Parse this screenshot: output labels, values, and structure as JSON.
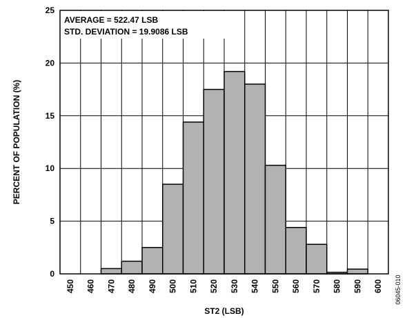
{
  "chart_data": {
    "type": "bar",
    "title": "",
    "xlabel": "ST2 (LSB)",
    "ylabel": "PERCENT OF POPULATION (%)",
    "x_ticks": [
      "450",
      "460",
      "470",
      "480",
      "490",
      "500",
      "510",
      "520",
      "530",
      "540",
      "550",
      "560",
      "570",
      "580",
      "590",
      "600"
    ],
    "y_ticks": [
      "0",
      "5",
      "10",
      "15",
      "20",
      "25"
    ],
    "xlim": [
      445,
      605
    ],
    "ylim": [
      0,
      25
    ],
    "grid": true,
    "bar_color": "#b2b2b2",
    "bins": [
      {
        "x": 470,
        "value": 0.5
      },
      {
        "x": 480,
        "value": 1.2
      },
      {
        "x": 490,
        "value": 2.5
      },
      {
        "x": 500,
        "value": 8.5
      },
      {
        "x": 510,
        "value": 14.4
      },
      {
        "x": 520,
        "value": 17.5
      },
      {
        "x": 530,
        "value": 19.2
      },
      {
        "x": 540,
        "value": 18.0
      },
      {
        "x": 550,
        "value": 10.3
      },
      {
        "x": 560,
        "value": 4.4
      },
      {
        "x": 570,
        "value": 2.8
      },
      {
        "x": 580,
        "value": 0.15
      },
      {
        "x": 590,
        "value": 0.45
      }
    ],
    "annotations": [
      "AVERAGE = 522.47 LSB",
      "STD. DEVIATION = 19.9086 LSB"
    ]
  },
  "figure_id": "06045-010"
}
